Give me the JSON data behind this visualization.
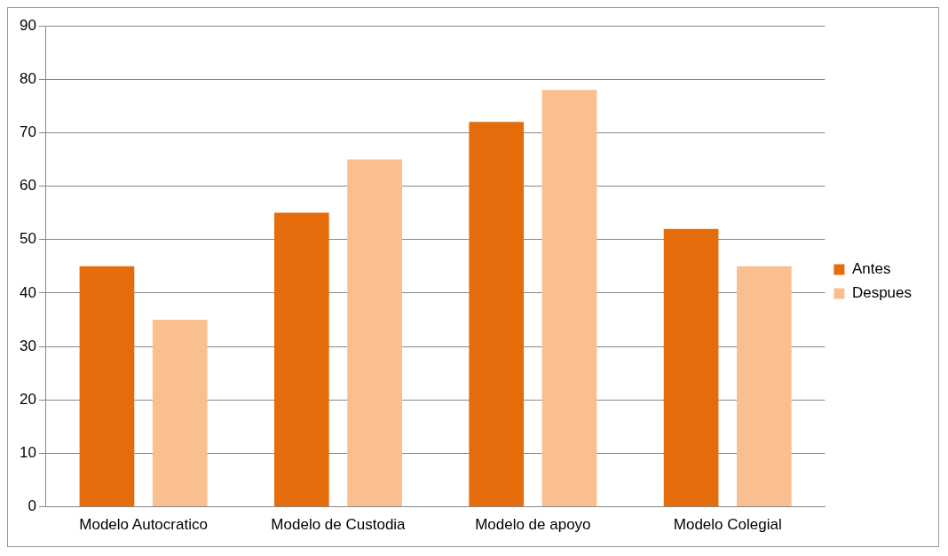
{
  "chart_data": {
    "type": "bar",
    "categories": [
      "Modelo Autocratico",
      "Modelo de Custodia",
      "Modelo de apoyo",
      "Modelo Colegial"
    ],
    "series": [
      {
        "name": "Antes",
        "color": "#e46c0a",
        "values": [
          45,
          55,
          72,
          52
        ]
      },
      {
        "name": "Despues",
        "color": "#fabf8f",
        "values": [
          35,
          65,
          78,
          45
        ]
      }
    ],
    "ylim": [
      0,
      90
    ],
    "yticks": [
      0,
      10,
      20,
      30,
      40,
      50,
      60,
      70,
      80,
      90
    ],
    "grid": "y",
    "legend": "right"
  }
}
